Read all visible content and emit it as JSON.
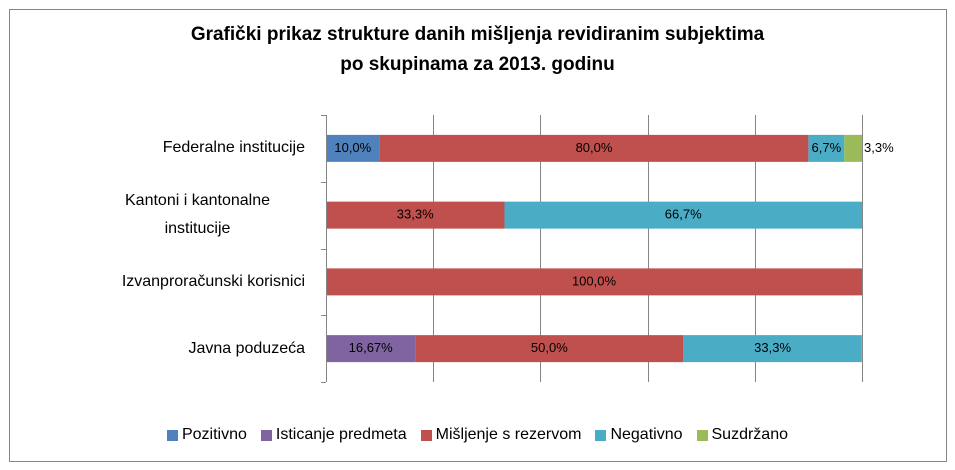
{
  "chart_data": {
    "type": "bar",
    "orientation": "horizontal",
    "stacked": true,
    "title": "Grafički prikaz strukture danih mišljenja revidiranim subjektima\npo skupinama  za 2013. godinu",
    "categories": [
      "Federalne institucije",
      "Kantoni i kantonalne institucije",
      "Izvanproračunski korisnici",
      "Javna poduzeća"
    ],
    "series": [
      {
        "name": "Pozitivno",
        "color": "#4f81bd",
        "values": [
          10,
          null,
          null,
          null
        ],
        "value_labels": [
          "10,0%",
          null,
          null,
          null
        ]
      },
      {
        "name": "Isticanje predmeta",
        "color": "#8064a2",
        "values": [
          null,
          null,
          null,
          16.67
        ],
        "value_labels": [
          null,
          null,
          null,
          "16,67%"
        ]
      },
      {
        "name": "Mišljenje s rezervom",
        "color": "#c0504d",
        "values": [
          80,
          33.3,
          100,
          50
        ],
        "value_labels": [
          "80,0%",
          "33,3%",
          "100,0%",
          "50,0%"
        ]
      },
      {
        "name": "Negativno",
        "color": "#4bacc6",
        "values": [
          6.7,
          66.7,
          null,
          33.3
        ],
        "value_labels": [
          "6,7%",
          "66,7%",
          null,
          "33,3%"
        ]
      },
      {
        "name": "Suzdržano",
        "color": "#9bbb59",
        "values": [
          3.3,
          null,
          null,
          null
        ],
        "value_labels": [
          "3,3%",
          null,
          null,
          null
        ]
      }
    ],
    "xlim": [
      0,
      100
    ],
    "xticks": [
      0,
      20,
      40,
      60,
      80,
      100
    ],
    "grid": true,
    "legend": "bottom"
  }
}
